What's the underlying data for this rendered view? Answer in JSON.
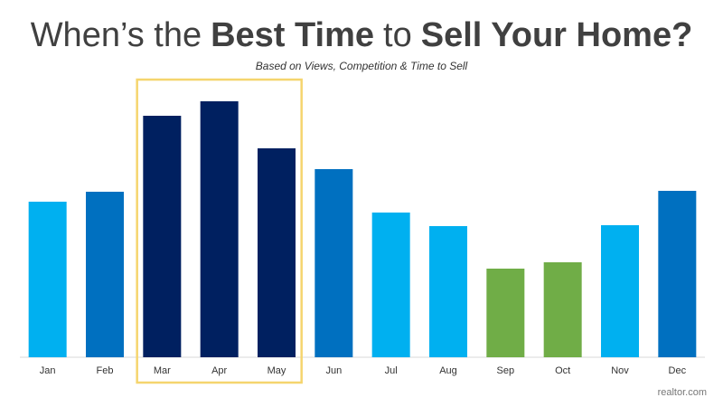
{
  "chart_data": {
    "type": "bar",
    "title": [
      {
        "text": "When’s the",
        "bold": false
      },
      {
        "text": "Best Time",
        "bold": true
      },
      {
        "text": "to",
        "bold": false
      },
      {
        "text": "Sell Your Home?",
        "bold": true
      }
    ],
    "subtitle": "Based on Views, Competition & Time to Sell",
    "categories": [
      "Jan",
      "Feb",
      "Mar",
      "Apr",
      "May",
      "Jun",
      "Jul",
      "Aug",
      "Sep",
      "Oct",
      "Nov",
      "Dec"
    ],
    "values": [
      172,
      183,
      267,
      283,
      231,
      208,
      160,
      145,
      98,
      105,
      146,
      184
    ],
    "colors": [
      "#00b0f0",
      "#0070c0",
      "#002060",
      "#002060",
      "#002060",
      "#0070c0",
      "#00b0f0",
      "#00b0f0",
      "#70ad47",
      "#70ad47",
      "#00b0f0",
      "#0070c0"
    ],
    "highlight": {
      "start": 2,
      "end": 4,
      "color": "#f5d56e"
    },
    "source": "realtor.com"
  }
}
